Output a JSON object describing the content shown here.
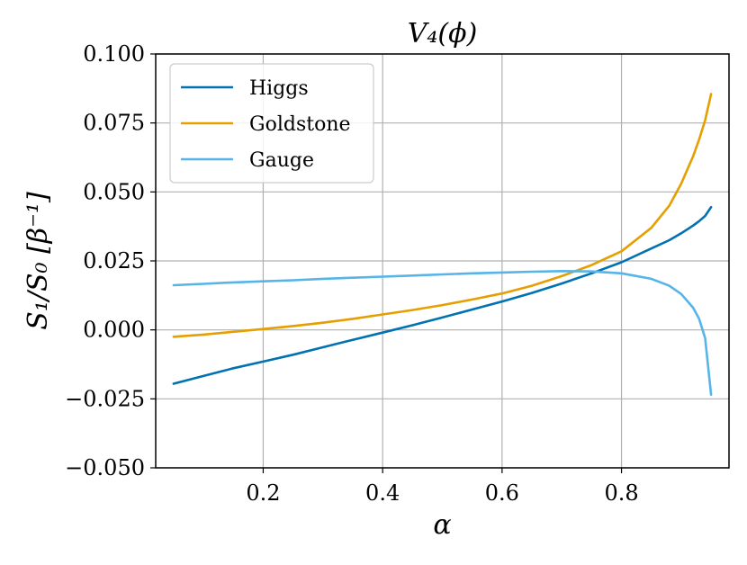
{
  "chart_data": {
    "type": "line",
    "title": "V₄(ϕ)",
    "xlabel": "α",
    "ylabel": "S₁/S₀ [β⁻¹]",
    "xlim": [
      0.02,
      0.98
    ],
    "ylim": [
      -0.05,
      0.1
    ],
    "xticks": [
      0.2,
      0.4,
      0.6,
      0.8
    ],
    "xtick_labels": [
      "0.2",
      "0.4",
      "0.6",
      "0.8"
    ],
    "yticks": [
      -0.05,
      -0.025,
      0.0,
      0.025,
      0.05,
      0.075,
      0.1
    ],
    "ytick_labels": [
      "−0.050",
      "−0.025",
      "0.000",
      "0.025",
      "0.050",
      "0.075",
      "0.100"
    ],
    "grid": true,
    "legend_position": "top-left",
    "x": [
      0.05,
      0.1,
      0.15,
      0.2,
      0.25,
      0.3,
      0.35,
      0.4,
      0.45,
      0.5,
      0.55,
      0.6,
      0.65,
      0.7,
      0.75,
      0.8,
      0.85,
      0.88,
      0.9,
      0.92,
      0.93,
      0.94,
      0.95
    ],
    "series": [
      {
        "name": "Higgs",
        "color": "#0072B2",
        "values": [
          -0.0195,
          -0.0167,
          -0.0139,
          -0.0115,
          -0.009,
          -0.0063,
          -0.0036,
          -0.001,
          0.0017,
          0.0045,
          0.0074,
          0.0103,
          0.0134,
          0.0168,
          0.0205,
          0.0245,
          0.0295,
          0.0325,
          0.035,
          0.0378,
          0.0394,
          0.0413,
          0.0445
        ]
      },
      {
        "name": "Goldstone",
        "color": "#E69F00",
        "values": [
          -0.0025,
          -0.0017,
          -0.0007,
          0.0003,
          0.0014,
          0.0026,
          0.004,
          0.0056,
          0.0072,
          0.009,
          0.011,
          0.0132,
          0.016,
          0.0195,
          0.0235,
          0.0285,
          0.037,
          0.045,
          0.053,
          0.063,
          0.069,
          0.076,
          0.0855
        ]
      },
      {
        "name": "Gauge",
        "color": "#56B4E9",
        "values": [
          0.0162,
          0.0167,
          0.0172,
          0.0176,
          0.018,
          0.0185,
          0.0189,
          0.0193,
          0.0197,
          0.0201,
          0.0205,
          0.0208,
          0.0211,
          0.0213,
          0.0212,
          0.0205,
          0.0185,
          0.016,
          0.013,
          0.008,
          0.004,
          -0.003,
          -0.0235
        ]
      }
    ]
  }
}
